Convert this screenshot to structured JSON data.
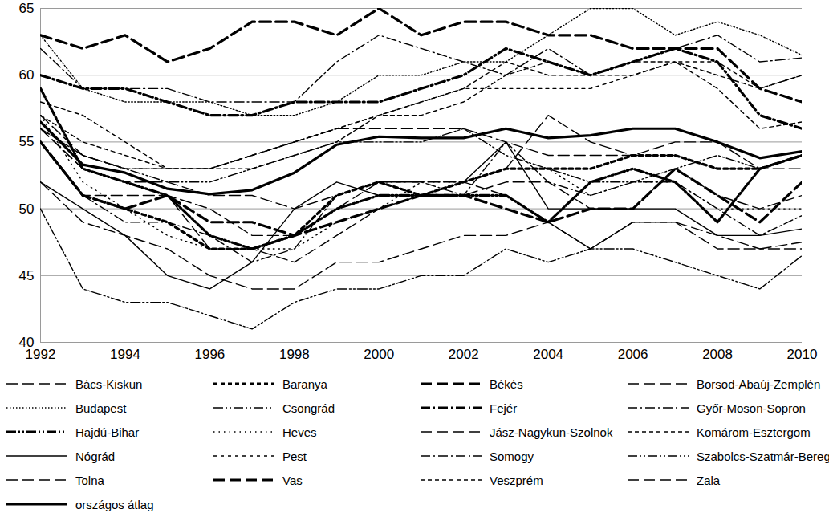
{
  "chart_data": {
    "type": "line",
    "x": [
      1992,
      1993,
      1994,
      1995,
      1996,
      1997,
      1998,
      1999,
      2000,
      2001,
      2002,
      2003,
      2004,
      2005,
      2006,
      2007,
      2008,
      2009,
      2010
    ],
    "xlim": [
      1992,
      2010
    ],
    "xticks": [
      1992,
      1994,
      1996,
      1998,
      2000,
      2002,
      2004,
      2006,
      2008,
      2010
    ],
    "ylim": [
      40,
      65
    ],
    "yticks": [
      40,
      45,
      50,
      55,
      60,
      65
    ],
    "grid": true,
    "legend": "bottom",
    "series": [
      {
        "name": "Bács-Kiskun",
        "color": "#000000",
        "line_style": "longdash",
        "values": [
          56,
          53,
          52,
          51,
          50,
          48,
          48,
          50,
          52,
          52,
          52,
          51,
          49,
          47,
          49,
          49,
          48,
          47,
          47
        ]
      },
      {
        "name": "Baranya",
        "color": "#000000",
        "line_style": "bold_dashed",
        "values": [
          55,
          51,
          50,
          49,
          47,
          47,
          48,
          51,
          52,
          51,
          52,
          53,
          53,
          53,
          54,
          54,
          53,
          53,
          54
        ]
      },
      {
        "name": "Békés",
        "color": "#000000",
        "line_style": "bold_longdash",
        "values": [
          55,
          51,
          50,
          51,
          49,
          49,
          48,
          49,
          50,
          51,
          51,
          50,
          49,
          50,
          50,
          53,
          51,
          49,
          52
        ]
      },
      {
        "name": "Borsod-Abaúj-Zemplén",
        "color": "#000000",
        "line_style": "longdash",
        "values": [
          52,
          49,
          48,
          47,
          45,
          44,
          44,
          46,
          46,
          47,
          48,
          48,
          49,
          47,
          49,
          49,
          47,
          47,
          47.5
        ]
      },
      {
        "name": "Budapest",
        "color": "#000000",
        "line_style": "dotted",
        "values": [
          63,
          59,
          58,
          58,
          58,
          57,
          57,
          58,
          60,
          60,
          61,
          61,
          63,
          65,
          65,
          63,
          64,
          63,
          61.5
        ]
      },
      {
        "name": "Csongrád",
        "color": "#000000",
        "line_style": "dashdotdot",
        "values": [
          56,
          54,
          53,
          52,
          52,
          53,
          54,
          55,
          55,
          55,
          56,
          54,
          53,
          52,
          52,
          53,
          54,
          53,
          54
        ]
      },
      {
        "name": "Fejér",
        "color": "#000000",
        "line_style": "bold_dashdot",
        "values": [
          60,
          59,
          59,
          58,
          57,
          57,
          58,
          58,
          58,
          59,
          60,
          62,
          61,
          60,
          61,
          62,
          61,
          57,
          56
        ]
      },
      {
        "name": "Győr-Moson-Sopron",
        "color": "#000000",
        "line_style": "dashdot",
        "values": [
          62,
          59,
          59,
          59,
          58,
          58,
          58,
          61,
          63,
          62,
          61,
          60,
          62,
          60,
          61,
          62,
          63,
          61,
          61.3
        ]
      },
      {
        "name": "Hajdú-Bihar",
        "color": "#000000",
        "line_style": "bold_dashdotdot",
        "values": [
          59,
          53,
          52,
          51,
          48,
          47,
          48,
          50,
          51,
          51,
          51,
          51,
          49,
          52,
          53,
          52,
          49,
          53,
          54
        ]
      },
      {
        "name": "Heves",
        "color": "#000000",
        "line_style": "sparsedot",
        "values": [
          57,
          52,
          50,
          48,
          47,
          47,
          47,
          49,
          50,
          52,
          52,
          53,
          53,
          51,
          52,
          52,
          50,
          50,
          50
        ]
      },
      {
        "name": "Jász-Nagykun-Szolnok",
        "color": "#000000",
        "line_style": "longdash",
        "values": [
          55,
          51,
          51,
          51,
          47,
          47,
          46,
          48,
          50,
          51,
          51,
          52,
          52,
          50,
          50,
          53,
          51,
          50,
          51
        ]
      },
      {
        "name": "Komárom-Esztergom",
        "color": "#000000",
        "line_style": "dashed",
        "values": [
          57,
          55,
          54,
          53,
          53,
          53,
          54,
          55,
          57,
          58,
          59,
          61,
          60,
          60,
          61,
          61,
          60,
          59,
          60
        ]
      },
      {
        "name": "Nógrád",
        "color": "#000000",
        "line_style": "solid",
        "values": [
          52,
          50,
          48,
          45,
          44,
          46,
          50,
          52,
          51,
          51,
          52,
          55,
          50,
          50,
          50,
          50,
          48,
          48,
          48.5
        ]
      },
      {
        "name": "Pest",
        "color": "#000000",
        "line_style": "squaredot",
        "values": [
          56,
          54,
          53,
          53,
          53,
          54,
          55,
          56,
          57,
          58,
          59,
          59,
          59,
          59,
          60,
          61,
          61,
          59,
          60
        ]
      },
      {
        "name": "Somogy",
        "color": "#000000",
        "line_style": "dashdot",
        "values": [
          55,
          51,
          49,
          49,
          48,
          46,
          47,
          51,
          52,
          52,
          51,
          55,
          52,
          51,
          52,
          52,
          50,
          48,
          49.5
        ]
      },
      {
        "name": "Szabolcs-Szatmár-Bereg",
        "color": "#000000",
        "line_style": "dashdotdot",
        "values": [
          50,
          44,
          43,
          43,
          42,
          41,
          43,
          44,
          44,
          45,
          45,
          47,
          46,
          47,
          47,
          46,
          45,
          44,
          46.5
        ]
      },
      {
        "name": "Tolna",
        "color": "#000000",
        "line_style": "longdash",
        "values": [
          56,
          53,
          52,
          52,
          51,
          51,
          50,
          51,
          52,
          51,
          52,
          53,
          57,
          55,
          54,
          54,
          53,
          53,
          53
        ]
      },
      {
        "name": "Vas",
        "color": "#000000",
        "line_style": "bold_longdash",
        "values": [
          63,
          62,
          63,
          61,
          62,
          64,
          64,
          63,
          65,
          63,
          64,
          64,
          63,
          63,
          62,
          62,
          62,
          59,
          58
        ]
      },
      {
        "name": "Veszprém",
        "color": "#000000",
        "line_style": "dashed",
        "values": [
          58,
          57,
          55,
          53,
          53,
          54,
          55,
          56,
          57,
          57,
          58,
          60,
          61,
          60,
          60,
          61,
          59,
          56,
          56.5
        ]
      },
      {
        "name": "Zala",
        "color": "#000000",
        "line_style": "longdash",
        "values": [
          57,
          54,
          53,
          53,
          53,
          54,
          55,
          56,
          56,
          56,
          56,
          55,
          54,
          54,
          54,
          55,
          55,
          53,
          54
        ]
      },
      {
        "name": "országos átlag",
        "color": "#000000",
        "line_style": "bold_solid",
        "values": [
          56.5,
          53.3,
          52.7,
          51.5,
          51.1,
          51.4,
          52.7,
          54.8,
          55.4,
          55.3,
          55.3,
          56,
          55.3,
          55.5,
          56,
          56,
          55,
          53.8,
          54.3
        ]
      }
    ]
  }
}
